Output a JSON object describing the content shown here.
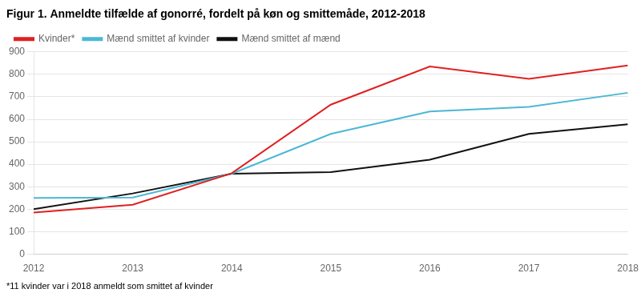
{
  "chart_data": {
    "type": "line",
    "title": "Figur 1. Anmeldte tilfælde af gonorré, fordelt på køn og smittemåde, 2012-2018",
    "annotations": [
      "*11 kvinder var i 2018 anmeldt som smittet af kvinder"
    ],
    "x": [
      2012,
      2013,
      2014,
      2015,
      2016,
      2017,
      2018
    ],
    "series": [
      {
        "name": "Kvinder*",
        "color": "#e02020",
        "values": [
          185,
          220,
          360,
          665,
          835,
          780,
          840
        ]
      },
      {
        "name": "Mænd smittet af kvinder",
        "color": "#4bb8d4",
        "values": [
          250,
          252,
          358,
          535,
          635,
          655,
          718
        ]
      },
      {
        "name": "Mænd smittet af mænd",
        "color": "#111111",
        "values": [
          200,
          270,
          358,
          365,
          420,
          535,
          578
        ]
      }
    ],
    "xlim": [
      2012,
      2018
    ],
    "xticks": [
      2012,
      2013,
      2014,
      2015,
      2016,
      2017,
      2018
    ],
    "ylim": [
      0,
      900
    ],
    "yticks": [
      0,
      100,
      200,
      300,
      400,
      500,
      600,
      700,
      800,
      900
    ],
    "grid": true,
    "legend": "upper left"
  }
}
